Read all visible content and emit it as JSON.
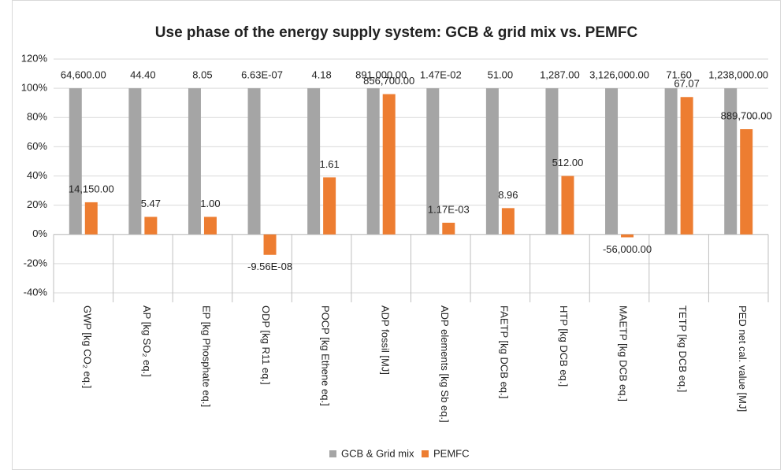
{
  "chart_data": {
    "type": "bar",
    "title": "Use phase of the energy supply system: GCB & grid mix vs. PEMFC",
    "categories": [
      "GWP  [kg CO₂ eq.]",
      "AP  [kg SO₂ eq.]",
      "EP [kg Phosphate eq.]",
      "ODP  [kg R11 eq.]",
      "POCP  [kg Ethene eq.]",
      "ADP fossil  [MJ]",
      "ADP elements   [kg Sb eq.]",
      "FAETP [kg DCB eq.]",
      "HTP [kg DCB eq.]",
      "MAETP [kg DCB eq.]",
      "TETP [kg DCB eq.]",
      "PED net cal. value [MJ]"
    ],
    "series": [
      {
        "name": "GCB & Grid mix",
        "color": "#a5a5a5",
        "values": [
          100,
          100,
          100,
          100,
          100,
          100,
          100,
          100,
          100,
          100,
          100,
          100
        ],
        "point_labels": [
          "64,600.00",
          "44.40",
          "8.05",
          "6.63E-07",
          "4.18",
          "891,000.00",
          "1.47E-02",
          "51.00",
          "1,287.00",
          "3,126,000.00",
          "71.60",
          "1,238,000.00"
        ]
      },
      {
        "name": "PEMFC",
        "color": "#ed7d31",
        "values": [
          22,
          12,
          12,
          -14,
          39,
          96,
          8,
          18,
          40,
          -2,
          94,
          72
        ],
        "point_labels": [
          "14,150.00",
          "5.47",
          "1.00",
          "-9.56E-08",
          "1.61",
          "856,700.00",
          "1.17E-03",
          "8.96",
          "512.00",
          "-56,000.00",
          "67.07",
          "889,700.00"
        ]
      }
    ],
    "ylim": [
      -40,
      120
    ],
    "yticks": [
      {
        "value": -40,
        "label": "-40%"
      },
      {
        "value": -20,
        "label": "-20%"
      },
      {
        "value": 0,
        "label": "0%"
      },
      {
        "value": 20,
        "label": "20%"
      },
      {
        "value": 40,
        "label": "40%"
      },
      {
        "value": 60,
        "label": "60%"
      },
      {
        "value": 80,
        "label": "80%"
      },
      {
        "value": 100,
        "label": "100%"
      },
      {
        "value": 120,
        "label": "120%"
      }
    ],
    "grid": true,
    "legend": "bottom"
  }
}
